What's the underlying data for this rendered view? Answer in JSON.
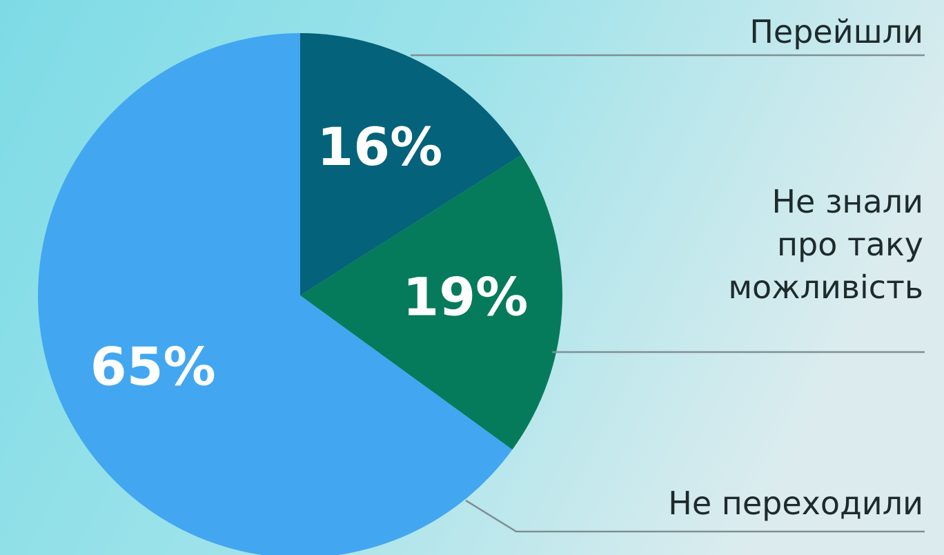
{
  "chart_data": {
    "type": "pie",
    "categories": [
      "Перейшли",
      "Не знали\nпро таку\nможливість",
      "Не переходили"
    ],
    "values": [
      16,
      19,
      65
    ],
    "value_labels": [
      "16%",
      "19%",
      "65%"
    ],
    "colors": [
      "#04627a",
      "#067b5b",
      "#42a7f0"
    ]
  }
}
